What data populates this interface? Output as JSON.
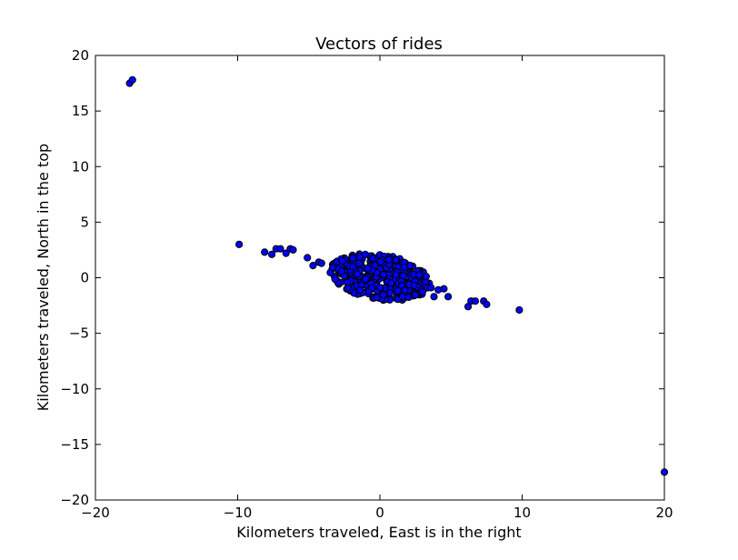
{
  "chart_data": {
    "type": "scatter",
    "title": "Vectors of rides",
    "xlabel": "Kilometers traveled, East is in the right",
    "ylabel": "Kilometers traveled, North in the top",
    "xlim": [
      -20,
      20
    ],
    "ylim": [
      -20,
      20
    ],
    "xticks": [
      -20,
      -10,
      0,
      10,
      20
    ],
    "yticks": [
      -20,
      -15,
      -10,
      -5,
      0,
      5,
      10,
      15,
      20
    ],
    "xtick_labels": [
      "−20",
      "−10",
      "0",
      "10",
      "20"
    ],
    "ytick_labels": [
      "−20",
      "−15",
      "−10",
      "−5",
      "0",
      "5",
      "10",
      "15",
      "20"
    ],
    "grid": false,
    "colors": {
      "marker_fill": "#0000ff",
      "marker_edge": "#000000",
      "axes": "#000000"
    },
    "series": [
      {
        "points": [
          [
            -17.6,
            17.5
          ],
          [
            -17.4,
            17.8
          ],
          [
            -9.9,
            3.0
          ],
          [
            -8.1,
            2.3
          ],
          [
            -7.6,
            2.1
          ],
          [
            -7.3,
            2.6
          ],
          [
            -7.0,
            2.6
          ],
          [
            -6.6,
            2.2
          ],
          [
            -6.3,
            2.6
          ],
          [
            -6.1,
            2.5
          ],
          [
            -5.1,
            1.8
          ],
          [
            -4.7,
            1.1
          ],
          [
            -4.3,
            1.4
          ],
          [
            -4.1,
            1.3
          ],
          [
            3.6,
            -0.9
          ],
          [
            3.8,
            -1.7
          ],
          [
            4.1,
            -1.1
          ],
          [
            4.5,
            -1.0
          ],
          [
            4.8,
            -1.7
          ],
          [
            6.2,
            -2.6
          ],
          [
            6.4,
            -2.1
          ],
          [
            6.7,
            -2.1
          ],
          [
            7.3,
            -2.1
          ],
          [
            7.5,
            -2.4
          ],
          [
            9.8,
            -2.9
          ],
          [
            20.0,
            -17.5
          ]
        ],
        "cluster": {
          "count": 360,
          "x_range": [
            -3.5,
            3.5
          ],
          "y_range": [
            -2.0,
            2.1
          ],
          "trend_slope": -0.15
        }
      }
    ]
  }
}
